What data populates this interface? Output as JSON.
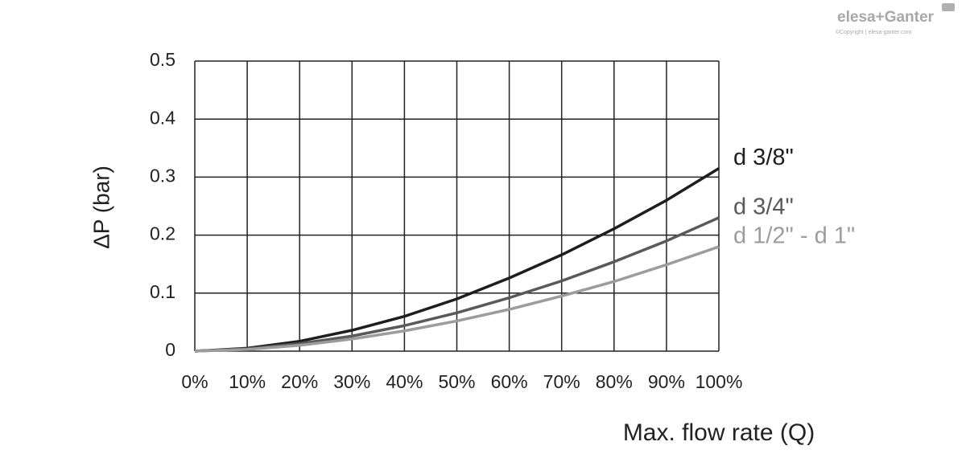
{
  "chart_data": {
    "type": "line",
    "y_label": "ΔP (bar)",
    "x_label": "Max. flow rate (Q)",
    "brand": "elesa+Ganter",
    "copyright": "©Copyright | elesa-ganter.com",
    "x": [
      0,
      10,
      20,
      30,
      40,
      50,
      60,
      70,
      80,
      90,
      100
    ],
    "xlim": [
      0,
      100
    ],
    "xticks": [
      {
        "value": 0,
        "label": "0%"
      },
      {
        "value": 10,
        "label": "10%"
      },
      {
        "value": 20,
        "label": "20%"
      },
      {
        "value": 30,
        "label": "30%"
      },
      {
        "value": 40,
        "label": "40%"
      },
      {
        "value": 50,
        "label": "50%"
      },
      {
        "value": 60,
        "label": "60%"
      },
      {
        "value": 70,
        "label": "70%"
      },
      {
        "value": 80,
        "label": "80%"
      },
      {
        "value": 90,
        "label": "90%"
      },
      {
        "value": 100,
        "label": "100%"
      }
    ],
    "ylim": [
      0,
      0.5
    ],
    "yticks": [
      0,
      0.1,
      0.2,
      0.3,
      0.4,
      0.5
    ],
    "grid": true,
    "series": [
      {
        "name": "d 3/8\"",
        "color": "#1e1e1e",
        "values": [
          0,
          0.005,
          0.017,
          0.036,
          0.06,
          0.09,
          0.126,
          0.166,
          0.211,
          0.26,
          0.315
        ]
      },
      {
        "name": "d 3/4\"",
        "color": "#595959",
        "values": [
          0,
          0.004,
          0.013,
          0.026,
          0.044,
          0.066,
          0.092,
          0.121,
          0.154,
          0.19,
          0.23
        ]
      },
      {
        "name": "d 1/2\" - d 1\"",
        "color": "#9c9c9c",
        "values": [
          0,
          0.003,
          0.01,
          0.021,
          0.035,
          0.052,
          0.072,
          0.095,
          0.12,
          0.149,
          0.18
        ]
      }
    ]
  }
}
